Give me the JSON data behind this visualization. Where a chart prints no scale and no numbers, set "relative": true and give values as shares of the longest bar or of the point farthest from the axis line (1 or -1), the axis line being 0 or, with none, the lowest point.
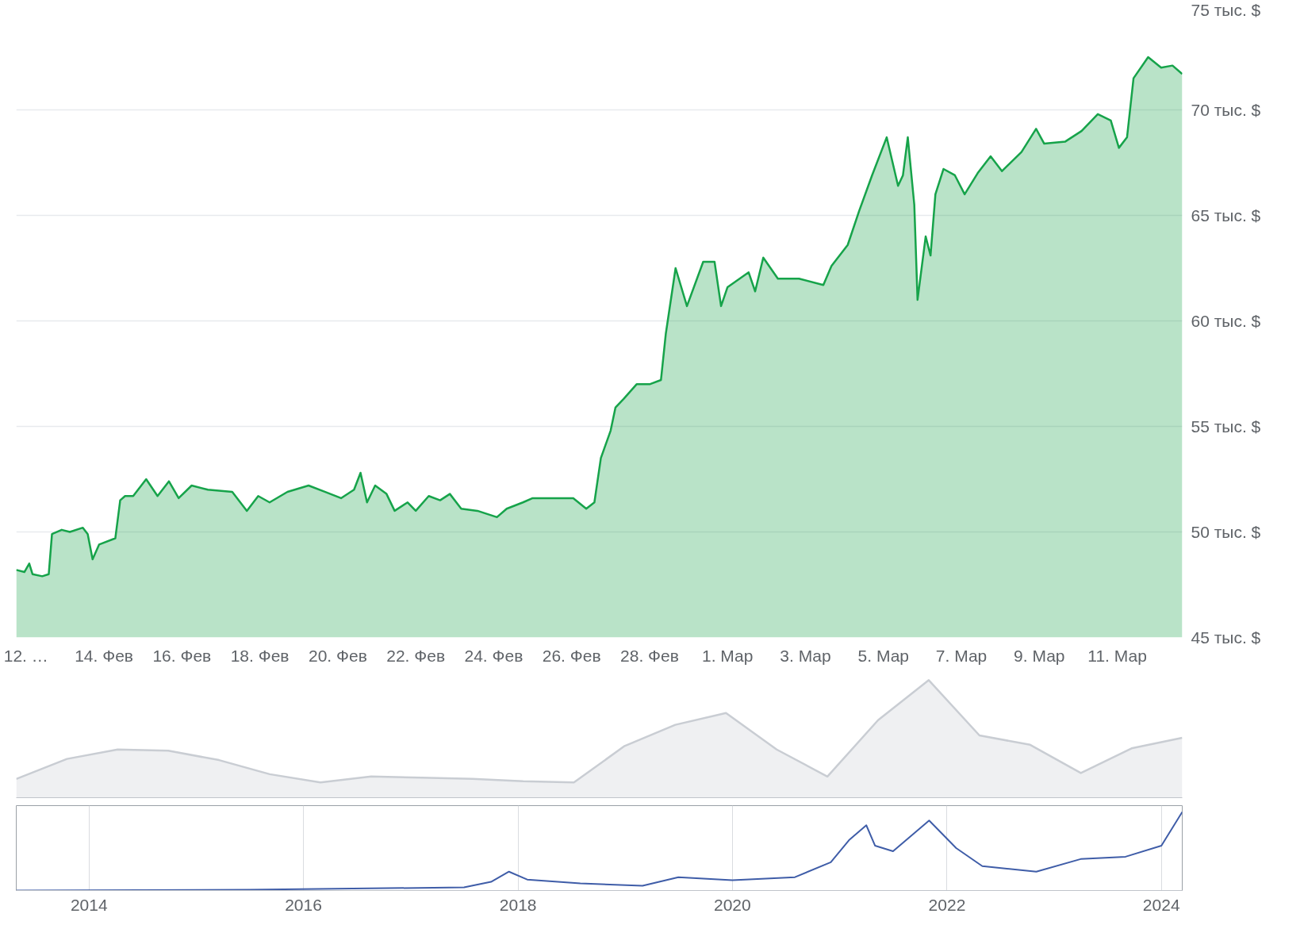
{
  "chart_data": [
    {
      "type": "area",
      "xlim": [
        "2024-02-11T18:00",
        "2024-03-12T16:00"
      ],
      "xticks": [
        {
          "value": "2024-02-12",
          "label": "12. …"
        },
        {
          "value": "2024-02-14",
          "label": "14. Фев"
        },
        {
          "value": "2024-02-16",
          "label": "16. Фев"
        },
        {
          "value": "2024-02-18",
          "label": "18. Фев"
        },
        {
          "value": "2024-02-20",
          "label": "20. Фев"
        },
        {
          "value": "2024-02-22",
          "label": "22. Фев"
        },
        {
          "value": "2024-02-24",
          "label": "24. Фев"
        },
        {
          "value": "2024-02-26",
          "label": "26. Фев"
        },
        {
          "value": "2024-02-28",
          "label": "28. Фев"
        },
        {
          "value": "2024-03-01",
          "label": "1. Мар"
        },
        {
          "value": "2024-03-03",
          "label": "3. Мар"
        },
        {
          "value": "2024-03-05",
          "label": "5. Мар"
        },
        {
          "value": "2024-03-07",
          "label": "7. Мар"
        },
        {
          "value": "2024-03-09",
          "label": "9. Мар"
        },
        {
          "value": "2024-03-11",
          "label": "11. Мар"
        }
      ],
      "ylim": [
        45,
        75
      ],
      "yticks": [
        {
          "value": 45,
          "label": "45 тыс. $"
        },
        {
          "value": 50,
          "label": "50 тыс. $"
        },
        {
          "value": 55,
          "label": "55 тыс. $"
        },
        {
          "value": 60,
          "label": "60 тыс. $"
        },
        {
          "value": 65,
          "label": "65 тыс. $"
        },
        {
          "value": 70,
          "label": "70 тыс. $"
        },
        {
          "value": 75,
          "label": "75 тыс. $"
        }
      ],
      "grid": "y",
      "x": [
        "2024-02-11T18:00",
        "2024-02-11T23:00",
        "2024-02-12T02:00",
        "2024-02-12T04:00",
        "2024-02-12T10:00",
        "2024-02-12T14:00",
        "2024-02-12T16:00",
        "2024-02-12T22:00",
        "2024-02-13T03:00",
        "2024-02-13T11:00",
        "2024-02-13T14:00",
        "2024-02-13T17:00",
        "2024-02-13T21:00",
        "2024-02-14T07:00",
        "2024-02-14T10:00",
        "2024-02-14T13:00",
        "2024-02-14T18:00",
        "2024-02-15T02:00",
        "2024-02-15T09:00",
        "2024-02-15T16:00",
        "2024-02-15T22:00",
        "2024-02-16T06:00",
        "2024-02-16T16:00",
        "2024-02-17T07:00",
        "2024-02-17T16:00",
        "2024-02-17T23:00",
        "2024-02-18T06:00",
        "2024-02-18T17:00",
        "2024-02-19T06:00",
        "2024-02-19T16:00",
        "2024-02-20T02:00",
        "2024-02-20T10:00",
        "2024-02-20T14:00",
        "2024-02-20T18:00",
        "2024-02-20T23:00",
        "2024-02-21T06:00",
        "2024-02-21T11:00",
        "2024-02-21T19:00",
        "2024-02-22T00:00",
        "2024-02-22T08:00",
        "2024-02-22T15:00",
        "2024-02-22T21:00",
        "2024-02-23T04:00",
        "2024-02-23T14:00",
        "2024-02-24T02:00",
        "2024-02-24T08:00",
        "2024-02-24T18:00",
        "2024-02-25T00:00",
        "2024-02-25T10:00",
        "2024-02-26T01:00",
        "2024-02-26T09:00",
        "2024-02-26T14:00",
        "2024-02-26T18:00",
        "2024-02-27T00:00",
        "2024-02-27T03:00",
        "2024-02-27T08:00",
        "2024-02-27T16:00",
        "2024-02-28T00:00",
        "2024-02-28T07:00",
        "2024-02-28T10:00",
        "2024-02-28T16:00",
        "2024-02-28T23:00",
        "2024-02-29T09:00",
        "2024-02-29T16:00",
        "2024-02-29T20:00",
        "2024-03-01T00:00",
        "2024-03-01T13:00",
        "2024-03-01T17:00",
        "2024-03-01T22:00",
        "2024-03-02T07:00",
        "2024-03-02T20:00",
        "2024-03-03T11:00",
        "2024-03-03T16:00",
        "2024-03-04T02:00",
        "2024-03-04T09:00",
        "2024-03-04T17:00",
        "2024-03-05T02:00",
        "2024-03-05T09:00",
        "2024-03-05T12:00",
        "2024-03-05T15:00",
        "2024-03-05T19:00",
        "2024-03-05T21:00",
        "2024-03-06T02:00",
        "2024-03-06T05:00",
        "2024-03-06T08:00",
        "2024-03-06T13:00",
        "2024-03-06T20:00",
        "2024-03-07T02:00",
        "2024-03-07T10:00",
        "2024-03-07T18:00",
        "2024-03-08T01:00",
        "2024-03-08T13:00",
        "2024-03-08T22:00",
        "2024-03-09T03:00",
        "2024-03-09T16:00",
        "2024-03-10T02:00",
        "2024-03-10T12:00",
        "2024-03-10T20:00",
        "2024-03-11T01:00",
        "2024-03-11T06:00",
        "2024-03-11T10:00",
        "2024-03-11T19:00",
        "2024-03-12T03:00",
        "2024-03-12T10:00",
        "2024-03-12T16:00"
      ],
      "series": [
        {
          "color": "#16a34a",
          "values": [
            48.2,
            48.1,
            48.5,
            48.0,
            47.9,
            48.0,
            49.9,
            50.1,
            50.0,
            50.2,
            49.9,
            48.7,
            49.4,
            49.7,
            51.5,
            51.7,
            51.7,
            52.5,
            51.7,
            52.4,
            51.6,
            52.2,
            52.0,
            51.9,
            51.0,
            51.7,
            51.4,
            51.9,
            52.2,
            51.9,
            51.6,
            52.0,
            52.8,
            51.4,
            52.2,
            51.8,
            51.0,
            51.4,
            51.0,
            51.7,
            51.5,
            51.8,
            51.1,
            51.0,
            50.7,
            51.1,
            51.4,
            51.6,
            51.6,
            51.6,
            51.1,
            51.4,
            53.5,
            54.8,
            55.9,
            56.3,
            57.0,
            57.0,
            57.2,
            59.4,
            62.5,
            60.7,
            62.8,
            62.8,
            60.7,
            61.6,
            62.3,
            61.4,
            63.0,
            62.0,
            62.0,
            61.7,
            62.6,
            63.6,
            65.2,
            66.9,
            68.7,
            66.4,
            66.9,
            68.7,
            65.5,
            61.0,
            64.0,
            63.1,
            66.0,
            67.2,
            66.9,
            66.0,
            67.0,
            67.8,
            67.1,
            68.0,
            69.1,
            68.4,
            68.5,
            69.0,
            69.8,
            69.5,
            68.2,
            68.7,
            71.5,
            72.5,
            72.0,
            72.1,
            71.7
          ]
        }
      ]
    },
    {
      "type": "area",
      "relative": true,
      "categories": [
        null,
        null,
        null,
        null,
        null,
        null,
        null,
        null,
        null,
        null,
        null,
        null,
        null,
        null,
        null,
        null,
        null,
        null,
        null,
        null,
        null,
        null,
        null,
        null
      ],
      "series": [
        {
          "color": "#c9cdd3",
          "values": [
            0.16,
            0.33,
            0.41,
            0.4,
            0.32,
            0.2,
            0.13,
            0.18,
            0.17,
            0.16,
            0.14,
            0.13,
            0.44,
            0.62,
            0.72,
            0.41,
            0.18,
            0.66,
            1,
            0.53,
            0.45,
            0.21,
            0.42,
            0.51
          ]
        }
      ]
    },
    {
      "type": "line",
      "relative": true,
      "xlim": [
        "2013-04-28",
        "2024-03-12"
      ],
      "xticks": [
        {
          "value": "2014-01-01",
          "label": "2014"
        },
        {
          "value": "2016-01-01",
          "label": "2016"
        },
        {
          "value": "2018-01-01",
          "label": "2018"
        },
        {
          "value": "2020-01-01",
          "label": "2020"
        },
        {
          "value": "2022-01-01",
          "label": "2022"
        },
        {
          "value": "2024-01-01",
          "label": "2024"
        }
      ],
      "grid": "x",
      "tick_labels": "x",
      "x": [
        "2013-04-28",
        "2015-07",
        "2017-07",
        "2017-10",
        "2017-12",
        "2018-02",
        "2018-08",
        "2019-03",
        "2019-07",
        "2020-01",
        "2020-08",
        "2020-12",
        "2021-02",
        "2021-04",
        "2021-05",
        "2021-07",
        "2021-11",
        "2022-02",
        "2022-05",
        "2022-11",
        "2023-04",
        "2023-09",
        "2024-01",
        "2024-03-12"
      ],
      "series": [
        {
          "color": "#3f5da8",
          "values": [
            0,
            0.01,
            0.04,
            0.11,
            0.24,
            0.14,
            0.09,
            0.06,
            0.17,
            0.13,
            0.17,
            0.36,
            0.64,
            0.83,
            0.57,
            0.5,
            0.89,
            0.54,
            0.31,
            0.24,
            0.4,
            0.43,
            0.57,
            1
          ]
        }
      ]
    }
  ]
}
